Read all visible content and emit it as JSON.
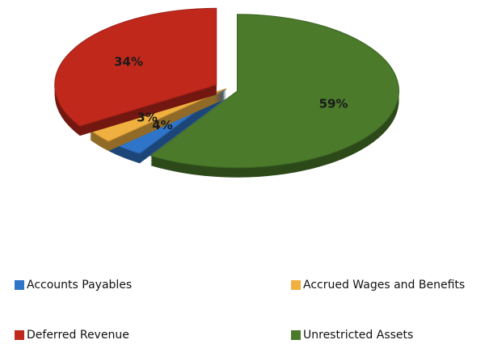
{
  "chart_data": {
    "type": "pie",
    "categories": [
      "Accounts Payables",
      "Accrued Wages and Benefits",
      "Deferred Revenue",
      "Unrestricted Assets"
    ],
    "values": [
      4,
      3,
      34,
      59
    ],
    "value_labels": [
      "4%",
      "3%",
      "34%",
      "59%"
    ],
    "colors": [
      "#2e74c8",
      "#f0b040",
      "#c0281c",
      "#4a7a2a"
    ],
    "legend": "bottom"
  }
}
